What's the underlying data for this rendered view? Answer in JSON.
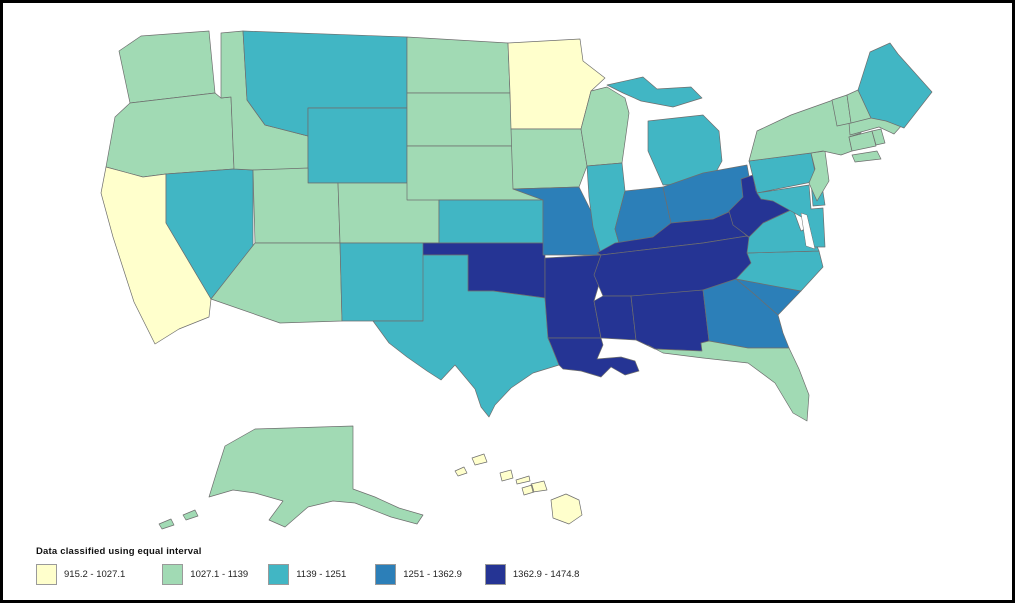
{
  "figure": {
    "background": "#ffffff",
    "frame_color": "#000000"
  },
  "legend": {
    "title": "Data classified using equal interval",
    "classes": [
      {
        "label": "915.2 - 1027.1",
        "color": "#FFFFCC"
      },
      {
        "label": "1027.1 - 1139",
        "color": "#A1DAB4"
      },
      {
        "label": "1139 - 1251",
        "color": "#41B6C4"
      },
      {
        "label": "1251 - 1362.9",
        "color": "#2C7FB8"
      },
      {
        "label": "1362.9 - 1474.8",
        "color": "#253494"
      }
    ]
  },
  "map": {
    "type": "choropleth",
    "classification": "equal interval",
    "value_range": [
      915.2,
      1474.8
    ],
    "stroke_color": "#6e6e6e",
    "water_color": "#ffffff",
    "states": [
      {
        "id": "WA",
        "class": 2
      },
      {
        "id": "OR",
        "class": 2
      },
      {
        "id": "CA",
        "class": 1
      },
      {
        "id": "NV",
        "class": 3
      },
      {
        "id": "ID",
        "class": 2
      },
      {
        "id": "MT",
        "class": 3
      },
      {
        "id": "WY",
        "class": 3
      },
      {
        "id": "UT",
        "class": 2
      },
      {
        "id": "CO",
        "class": 2
      },
      {
        "id": "AZ",
        "class": 2
      },
      {
        "id": "NM",
        "class": 3
      },
      {
        "id": "ND",
        "class": 2
      },
      {
        "id": "SD",
        "class": 2
      },
      {
        "id": "NE",
        "class": 2
      },
      {
        "id": "KS",
        "class": 3
      },
      {
        "id": "OK",
        "class": 5
      },
      {
        "id": "TX",
        "class": 3
      },
      {
        "id": "MN",
        "class": 1
      },
      {
        "id": "IA",
        "class": 2
      },
      {
        "id": "MO",
        "class": 4
      },
      {
        "id": "AR",
        "class": 5
      },
      {
        "id": "LA",
        "class": 5
      },
      {
        "id": "WI",
        "class": 2
      },
      {
        "id": "IL",
        "class": 3
      },
      {
        "id": "MI",
        "class": 3
      },
      {
        "id": "IN",
        "class": 4
      },
      {
        "id": "OH",
        "class": 4
      },
      {
        "id": "KY",
        "class": 5
      },
      {
        "id": "TN",
        "class": 5
      },
      {
        "id": "MS",
        "class": 5
      },
      {
        "id": "AL",
        "class": 5
      },
      {
        "id": "GA",
        "class": 4
      },
      {
        "id": "SC",
        "class": 4
      },
      {
        "id": "NC",
        "class": 3
      },
      {
        "id": "VA",
        "class": 3
      },
      {
        "id": "WV",
        "class": 5
      },
      {
        "id": "FL",
        "class": 2
      },
      {
        "id": "PA",
        "class": 3
      },
      {
        "id": "MD",
        "class": 3
      },
      {
        "id": "DE",
        "class": 3
      },
      {
        "id": "NJ",
        "class": 2
      },
      {
        "id": "NY",
        "class": 2
      },
      {
        "id": "CT",
        "class": 2
      },
      {
        "id": "RI",
        "class": 2
      },
      {
        "id": "MA",
        "class": 2
      },
      {
        "id": "VT",
        "class": 2
      },
      {
        "id": "NH",
        "class": 2
      },
      {
        "id": "ME",
        "class": 3
      },
      {
        "id": "AK",
        "class": 2
      },
      {
        "id": "HI",
        "class": 1
      }
    ]
  }
}
